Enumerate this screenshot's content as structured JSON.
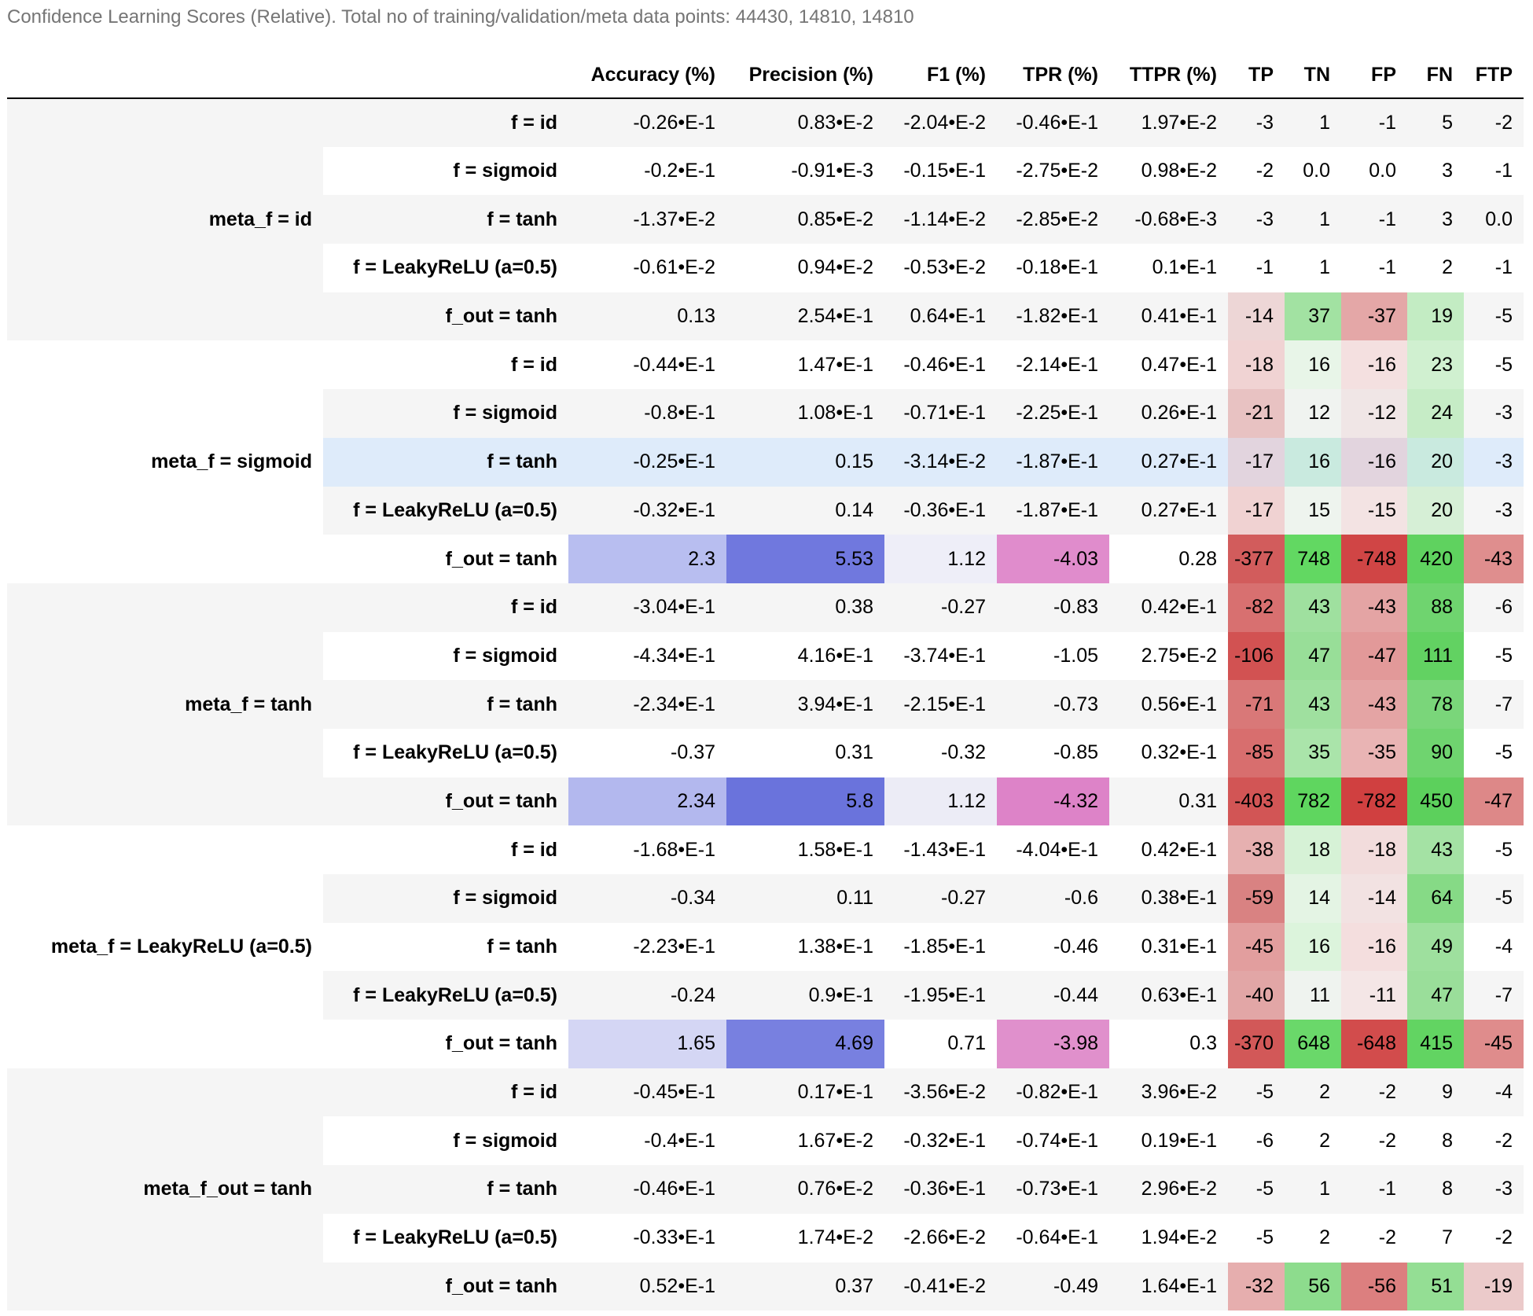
{
  "caption": "Confidence Learning Scores (Relative). Total no of training/validation/meta data points: 44430, 14810, 14810",
  "columns": [
    "Accuracy (%)",
    "Precision (%)",
    "F1 (%)",
    "TPR (%)",
    "TTPR (%)",
    "TP",
    "TN",
    "FP",
    "FN",
    "FTP"
  ],
  "groups": [
    {
      "label": "meta_f = id",
      "rows": [
        {
          "label": "f = id",
          "values": [
            "-0.26•E-1",
            "0.83•E-2",
            "-2.04•E-2",
            "-0.46•E-1",
            "1.97•E-2",
            "-3",
            "1",
            "-1",
            "5",
            "-2"
          ],
          "colors": [
            "",
            "",
            "",
            "",
            "",
            "",
            "",
            "",
            "",
            ""
          ]
        },
        {
          "label": "f = sigmoid",
          "values": [
            "-0.2•E-1",
            "-0.91•E-3",
            "-0.15•E-1",
            "-2.75•E-2",
            "0.98•E-2",
            "-2",
            "0.0",
            "0.0",
            "3",
            "-1"
          ],
          "colors": [
            "",
            "",
            "",
            "",
            "",
            "",
            "",
            "",
            "",
            ""
          ]
        },
        {
          "label": "f = tanh",
          "values": [
            "-1.37•E-2",
            "0.85•E-2",
            "-1.14•E-2",
            "-2.85•E-2",
            "-0.68•E-3",
            "-3",
            "1",
            "-1",
            "3",
            "0.0"
          ],
          "colors": [
            "",
            "",
            "",
            "",
            "",
            "",
            "",
            "",
            "",
            ""
          ]
        },
        {
          "label": "f = LeakyReLU (a=0.5)",
          "values": [
            "-0.61•E-2",
            "0.94•E-2",
            "-0.53•E-2",
            "-0.18•E-1",
            "0.1•E-1",
            "-1",
            "1",
            "-1",
            "2",
            "-1"
          ],
          "colors": [
            "",
            "",
            "",
            "",
            "",
            "",
            "",
            "",
            "",
            ""
          ]
        },
        {
          "label": "f_out = tanh",
          "values": [
            "0.13",
            "2.54•E-1",
            "0.64•E-1",
            "-1.82•E-1",
            "0.41•E-1",
            "-14",
            "37",
            "-37",
            "19",
            "-5"
          ],
          "colors": [
            "",
            "",
            "",
            "",
            "",
            "#edd6d6",
            "#a2e2a2",
            "#e4a7a7",
            "#c3ecc3",
            ""
          ]
        }
      ]
    },
    {
      "label": "meta_f = sigmoid",
      "rows": [
        {
          "label": "f = id",
          "values": [
            "-0.44•E-1",
            "1.47•E-1",
            "-0.46•E-1",
            "-2.14•E-1",
            "0.47•E-1",
            "-18",
            "16",
            "-16",
            "23",
            "-5"
          ],
          "colors": [
            "",
            "",
            "",
            "",
            "",
            "#f0d3d3",
            "#e8f5e8",
            "#f4e0e0",
            "#d0f0d0",
            ""
          ]
        },
        {
          "label": "f = sigmoid",
          "values": [
            "-0.8•E-1",
            "1.08•E-1",
            "-0.71•E-1",
            "-2.25•E-1",
            "0.26•E-1",
            "-21",
            "12",
            "-12",
            "24",
            "-3"
          ],
          "colors": [
            "",
            "",
            "",
            "",
            "",
            "#e8c2c2",
            "#f0f3f0",
            "#f0e6e6",
            "#c6ecc6",
            ""
          ]
        },
        {
          "label": "f = tanh",
          "values": [
            "-0.25•E-1",
            "0.15",
            "-3.14•E-2",
            "-1.87•E-1",
            "0.27•E-1",
            "-17",
            "16",
            "-16",
            "20",
            "-3"
          ],
          "colors": [
            "",
            "",
            "",
            "",
            "",
            "#e2d4de",
            "#c9eadf",
            "#e2d4de",
            "#c9eadf",
            ""
          ]
        },
        {
          "label": "f = LeakyReLU (a=0.5)",
          "values": [
            "-0.32•E-1",
            "0.14",
            "-0.36•E-1",
            "-1.87•E-1",
            "0.27•E-1",
            "-17",
            "15",
            "-15",
            "20",
            "-3"
          ],
          "colors": [
            "",
            "",
            "",
            "",
            "",
            "#f0d2d2",
            "#eef4ee",
            "#f3e3e3",
            "#d6efd6",
            ""
          ]
        },
        {
          "label": "f_out = tanh",
          "values": [
            "2.3",
            "5.53",
            "1.12",
            "-4.03",
            "0.28",
            "-377",
            "748",
            "-748",
            "420",
            "-43"
          ],
          "colors": [
            "#b8bef0",
            "#7078de",
            "#eeeef8",
            "#e08ccc",
            "",
            "#d25c5c",
            "#62d862",
            "#d04545",
            "#5fd25f",
            "#df8e8e"
          ]
        }
      ]
    },
    {
      "label": "meta_f = tanh",
      "rows": [
        {
          "label": "f = id",
          "values": [
            "-3.04•E-1",
            "0.38",
            "-0.27",
            "-0.83",
            "0.42•E-1",
            "-82",
            "43",
            "-43",
            "88",
            "-6"
          ],
          "colors": [
            "",
            "",
            "",
            "",
            "",
            "#d87070",
            "#9fe09f",
            "#e4a4a4",
            "#6fd46f",
            ""
          ]
        },
        {
          "label": "f = sigmoid",
          "values": [
            "-4.34•E-1",
            "4.16•E-1",
            "-3.74•E-1",
            "-1.05",
            "2.75•E-2",
            "-106",
            "47",
            "-47",
            "111",
            "-5"
          ],
          "colors": [
            "",
            "",
            "",
            "",
            "",
            "#d25252",
            "#98de98",
            "#e29999",
            "#62d262",
            ""
          ]
        },
        {
          "label": "f = tanh",
          "values": [
            "-2.34•E-1",
            "3.94•E-1",
            "-2.15•E-1",
            "-0.73",
            "0.56•E-1",
            "-71",
            "43",
            "-43",
            "78",
            "-7"
          ],
          "colors": [
            "",
            "",
            "",
            "",
            "",
            "#d97878",
            "#9fe09f",
            "#e4a4a4",
            "#7ad67a",
            ""
          ]
        },
        {
          "label": "f = LeakyReLU (a=0.5)",
          "values": [
            "-0.37",
            "0.31",
            "-0.32",
            "-0.85",
            "0.32•E-1",
            "-85",
            "35",
            "-35",
            "90",
            "-5"
          ],
          "colors": [
            "",
            "",
            "",
            "",
            "",
            "#d86e6e",
            "#aae4aa",
            "#e9b4b4",
            "#6fd46f",
            ""
          ]
        },
        {
          "label": "f_out = tanh",
          "values": [
            "2.34",
            "5.8",
            "1.12",
            "-4.32",
            "0.31",
            "-403",
            "782",
            "-782",
            "450",
            "-47"
          ],
          "colors": [
            "#b3b8ee",
            "#6a73dc",
            "#ececf6",
            "#dd83c8",
            "",
            "#d25555",
            "#5fd65f",
            "#d04040",
            "#5cd05c",
            "#dd8888"
          ]
        }
      ]
    },
    {
      "label": "meta_f = LeakyReLU (a=0.5)",
      "rows": [
        {
          "label": "f = id",
          "values": [
            "-1.68•E-1",
            "1.58•E-1",
            "-1.43•E-1",
            "-4.04•E-1",
            "0.42•E-1",
            "-38",
            "18",
            "-18",
            "43",
            "-5"
          ],
          "colors": [
            "",
            "",
            "",
            "",
            "",
            "#e6b0b0",
            "#d6f2d6",
            "#f2dcdc",
            "#a4e2a4",
            ""
          ]
        },
        {
          "label": "f = sigmoid",
          "values": [
            "-0.34",
            "0.11",
            "-0.27",
            "-0.6",
            "0.38•E-1",
            "-59",
            "14",
            "-14",
            "64",
            "-5"
          ],
          "colors": [
            "",
            "",
            "",
            "",
            "",
            "#d98282",
            "#e4f4e4",
            "#f2e2e2",
            "#86da86",
            ""
          ]
        },
        {
          "label": "f = tanh",
          "values": [
            "-2.23•E-1",
            "1.38•E-1",
            "-1.85•E-1",
            "-0.46",
            "0.31•E-1",
            "-45",
            "16",
            "-16",
            "49",
            "-4"
          ],
          "colors": [
            "",
            "",
            "",
            "",
            "",
            "#e29e9e",
            "#dcf4dc",
            "#f4dede",
            "#9ee09e",
            ""
          ]
        },
        {
          "label": "f = LeakyReLU (a=0.5)",
          "values": [
            "-0.24",
            "0.9•E-1",
            "-1.95•E-1",
            "-0.44",
            "0.63•E-1",
            "-40",
            "11",
            "-11",
            "47",
            "-7"
          ],
          "colors": [
            "",
            "",
            "",
            "",
            "",
            "#e2a6a6",
            "#eff3ef",
            "#f4e6e6",
            "#9ade9a",
            ""
          ]
        },
        {
          "label": "f_out = tanh",
          "values": [
            "1.65",
            "4.69",
            "0.71",
            "-3.98",
            "0.3",
            "-370",
            "648",
            "-648",
            "415",
            "-45"
          ],
          "colors": [
            "#d4d6f4",
            "#7880e0",
            "",
            "#e090cc",
            "",
            "#d25858",
            "#6ad86a",
            "#d24c4c",
            "#62d462",
            "#df8c8c"
          ]
        }
      ]
    },
    {
      "label": "meta_f_out = tanh",
      "rows": [
        {
          "label": "f = id",
          "values": [
            "-0.45•E-1",
            "0.17•E-1",
            "-3.56•E-2",
            "-0.82•E-1",
            "3.96•E-2",
            "-5",
            "2",
            "-2",
            "9",
            "-4"
          ],
          "colors": [
            "",
            "",
            "",
            "",
            "",
            "",
            "",
            "",
            "",
            ""
          ]
        },
        {
          "label": "f = sigmoid",
          "values": [
            "-0.4•E-1",
            "1.67•E-2",
            "-0.32•E-1",
            "-0.74•E-1",
            "0.19•E-1",
            "-6",
            "2",
            "-2",
            "8",
            "-2"
          ],
          "colors": [
            "",
            "",
            "",
            "",
            "",
            "",
            "",
            "",
            "",
            ""
          ]
        },
        {
          "label": "f = tanh",
          "values": [
            "-0.46•E-1",
            "0.76•E-2",
            "-0.36•E-1",
            "-0.73•E-1",
            "2.96•E-2",
            "-5",
            "1",
            "-1",
            "8",
            "-3"
          ],
          "colors": [
            "",
            "",
            "",
            "",
            "",
            "",
            "",
            "",
            "",
            ""
          ]
        },
        {
          "label": "f = LeakyReLU (a=0.5)",
          "values": [
            "-0.33•E-1",
            "1.74•E-2",
            "-2.66•E-2",
            "-0.64•E-1",
            "1.94•E-2",
            "-5",
            "2",
            "-2",
            "7",
            "-2"
          ],
          "colors": [
            "",
            "",
            "",
            "",
            "",
            "",
            "",
            "",
            "",
            ""
          ]
        },
        {
          "label": "f_out = tanh",
          "values": [
            "0.52•E-1",
            "0.37",
            "-0.41•E-2",
            "-0.49",
            "1.64•E-1",
            "-32",
            "56",
            "-56",
            "51",
            "-19"
          ],
          "colors": [
            "",
            "",
            "",
            "",
            "",
            "#e6aeae",
            "#8ddc8d",
            "#dc7f7f",
            "#94de94",
            "#ebcaca"
          ]
        }
      ]
    }
  ],
  "highlighted_row": {
    "group": 1,
    "row": 2
  }
}
